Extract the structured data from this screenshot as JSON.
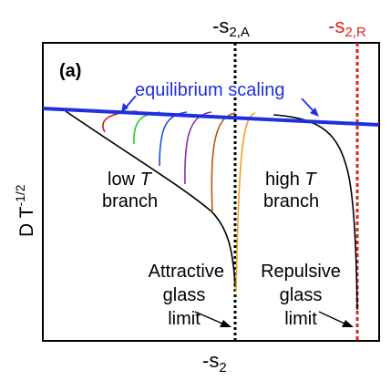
{
  "chart_data": {
    "type": "line",
    "panel_label": "(a)",
    "xlabel": {
      "prefix": "-s",
      "sub": "2"
    },
    "ylabel": {
      "base": "D T",
      "sup": "-1/2"
    },
    "top_markers": [
      {
        "prefix": "-s",
        "sub": "2,A",
        "color": "#000000"
      },
      {
        "prefix": "-s",
        "sub": "2,R",
        "color": "#e0201b"
      }
    ],
    "equilibrium": {
      "label": "equilibrium scaling",
      "color": "#1f2fe0"
    },
    "annotations": {
      "low_t": [
        "low ",
        "T",
        "branch"
      ],
      "high_t": [
        "high ",
        "T",
        "branch"
      ],
      "attractive": [
        "Attractive",
        "glass",
        "limit"
      ],
      "repulsive": [
        "Repulsive",
        "glass",
        "limit"
      ]
    },
    "series_colors": [
      "#d0201b",
      "#1fd21f",
      "#1f4fe0",
      "#8a2da0",
      "#b05a10",
      "#f0a020",
      "#000000"
    ]
  }
}
